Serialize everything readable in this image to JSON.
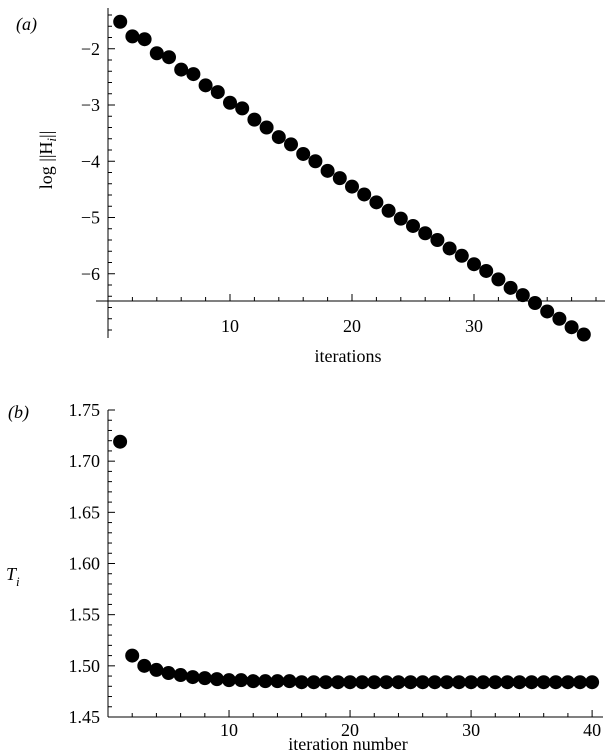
{
  "chart_data": [
    {
      "type": "scatter",
      "panel_label": "(a)",
      "xlabel": "iterations",
      "ylabel": "log ||H_i||",
      "ylabel_parts": {
        "prefix": "log ||H",
        "sub": "i",
        "suffix": "||"
      },
      "xlim": [
        0,
        40
      ],
      "ylim": [
        -7,
        -1.4
      ],
      "xticks": [
        10,
        20,
        30
      ],
      "yticks": [
        -2,
        -3,
        -4,
        -5,
        -6
      ],
      "ytick_labels": [
        "−2",
        "−3",
        "−4",
        "−5",
        "−6"
      ],
      "grid": false,
      "x": [
        1,
        2,
        3,
        4,
        5,
        6,
        7,
        8,
        9,
        10,
        11,
        12,
        13,
        14,
        15,
        16,
        17,
        18,
        19,
        20,
        21,
        22,
        23,
        24,
        25,
        26,
        27,
        28,
        29,
        30,
        31,
        32,
        33,
        34,
        35,
        36,
        37,
        38,
        39
      ],
      "y": [
        -1.52,
        -1.78,
        -1.83,
        -2.08,
        -2.15,
        -2.37,
        -2.45,
        -2.65,
        -2.77,
        -2.96,
        -3.06,
        -3.26,
        -3.4,
        -3.57,
        -3.7,
        -3.87,
        -4.0,
        -4.17,
        -4.3,
        -4.45,
        -4.59,
        -4.73,
        -4.88,
        -5.02,
        -5.15,
        -5.28,
        -5.4,
        -5.55,
        -5.68,
        -5.83,
        -5.95,
        -6.1,
        -6.25,
        -6.38,
        -6.52,
        -6.67,
        -6.8,
        -6.95,
        -7.08
      ]
    },
    {
      "type": "scatter",
      "panel_label": "(b)",
      "xlabel": "iteration number",
      "ylabel": "T_i",
      "ylabel_parts": {
        "prefix": "T",
        "sub": "i",
        "suffix": ""
      },
      "xlim": [
        0,
        40.9
      ],
      "ylim": [
        1.45,
        1.75
      ],
      "xticks": [
        10,
        20,
        30,
        40
      ],
      "yticks": [
        1.45,
        1.5,
        1.55,
        1.6,
        1.65,
        1.7,
        1.75
      ],
      "ytick_labels": [
        "1.45",
        "1.50",
        "1.55",
        "1.60",
        "1.65",
        "1.70",
        "1.75"
      ],
      "grid": false,
      "x": [
        1,
        2,
        3,
        4,
        5,
        6,
        7,
        8,
        9,
        10,
        11,
        12,
        13,
        14,
        15,
        16,
        17,
        18,
        19,
        20,
        21,
        22,
        23,
        24,
        25,
        26,
        27,
        28,
        29,
        30,
        31,
        32,
        33,
        34,
        35,
        36,
        37,
        38,
        39,
        40
      ],
      "y": [
        1.719,
        1.51,
        1.5,
        1.496,
        1.493,
        1.491,
        1.489,
        1.488,
        1.487,
        1.486,
        1.486,
        1.485,
        1.485,
        1.485,
        1.485,
        1.484,
        1.484,
        1.484,
        1.484,
        1.484,
        1.484,
        1.484,
        1.484,
        1.484,
        1.484,
        1.484,
        1.484,
        1.484,
        1.484,
        1.484,
        1.484,
        1.484,
        1.484,
        1.484,
        1.484,
        1.484,
        1.484,
        1.484,
        1.484,
        1.484
      ]
    }
  ]
}
